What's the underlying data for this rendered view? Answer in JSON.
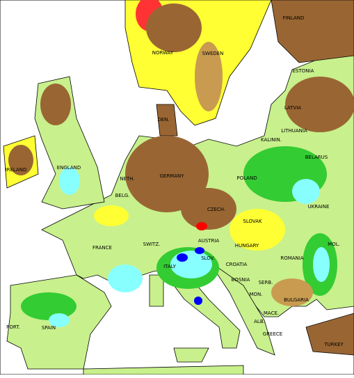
{
  "labels": [
    "FINLAND",
    "NORWAY",
    "SWEDEN",
    "ESTONIA",
    "LATVIA",
    "DEN.",
    "LITHUANIA",
    "KALININ.",
    "IRELAND",
    "ENGLAND",
    "BELARUS",
    "NETH.",
    "GERMANY",
    "POLAND",
    "BELG.",
    "CZECH.",
    "UKRAINE",
    "SLOVAK",
    "FRANCE",
    "SWITZ.",
    "AUSTRIA",
    "HUNGARY",
    "MOL.",
    "ROMANIA",
    "SLOV.",
    "CROATIA",
    "ITALY",
    "BOSNIA",
    "SERB.",
    "MON.",
    "BULGARIA",
    "MACE.",
    "ALB.",
    "PORT.",
    "SPAIN",
    "GREECE",
    "TURKEY"
  ]
}
